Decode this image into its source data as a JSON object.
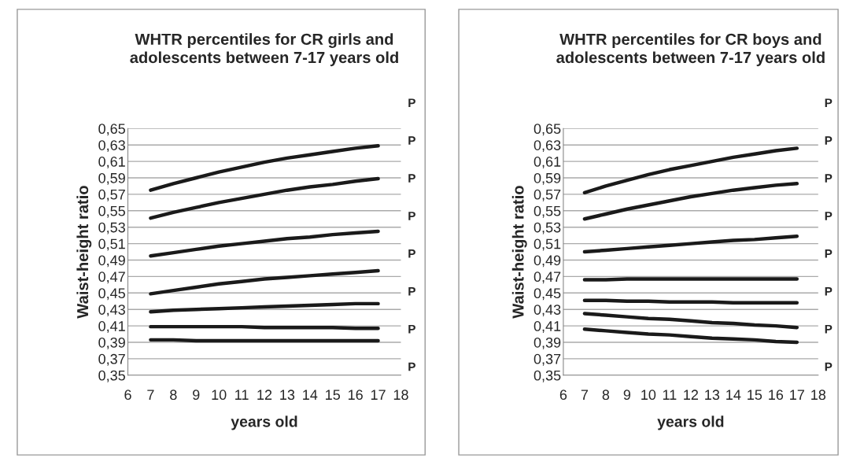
{
  "chart_data": [
    {
      "type": "line",
      "title": "WHTR percentiles for CR girls and\nadolescents between 7-17 years old",
      "xlabel": "years old",
      "ylabel": "Waist-height ratio",
      "x": [
        7,
        8,
        9,
        10,
        11,
        12,
        13,
        14,
        15,
        16,
        17
      ],
      "series": [
        {
          "color": "#1a1a1a",
          "values": [
            0.575,
            0.583,
            0.59,
            0.597,
            0.603,
            0.609,
            0.614,
            0.618,
            0.622,
            0.626,
            0.629
          ]
        },
        {
          "color": "#1a1a1a",
          "values": [
            0.541,
            0.548,
            0.554,
            0.56,
            0.565,
            0.57,
            0.575,
            0.579,
            0.582,
            0.586,
            0.589
          ]
        },
        {
          "color": "#1a1a1a",
          "values": [
            0.495,
            0.499,
            0.503,
            0.507,
            0.51,
            0.513,
            0.516,
            0.518,
            0.521,
            0.523,
            0.525
          ]
        },
        {
          "color": "#1a1a1a",
          "values": [
            0.449,
            0.453,
            0.457,
            0.461,
            0.464,
            0.467,
            0.469,
            0.471,
            0.473,
            0.475,
            0.477
          ]
        },
        {
          "color": "#1a1a1a",
          "values": [
            0.427,
            0.429,
            0.43,
            0.431,
            0.432,
            0.433,
            0.434,
            0.435,
            0.436,
            0.437,
            0.437
          ]
        },
        {
          "color": "#1a1a1a",
          "values": [
            0.409,
            0.409,
            0.409,
            0.409,
            0.409,
            0.408,
            0.408,
            0.408,
            0.408,
            0.407,
            0.407
          ]
        },
        {
          "color": "#1a1a1a",
          "values": [
            0.393,
            0.393,
            0.392,
            0.392,
            0.392,
            0.392,
            0.392,
            0.392,
            0.392,
            0.392,
            0.392
          ]
        }
      ],
      "annotations": [
        "P",
        "P",
        "P",
        "P",
        "P",
        "P",
        "P",
        "P"
      ],
      "xlim": [
        6,
        18
      ],
      "xticks": [
        6,
        7,
        8,
        9,
        10,
        11,
        12,
        13,
        14,
        15,
        16,
        17,
        18
      ],
      "ylim": [
        0.35,
        0.65
      ],
      "yticks": [
        {
          "value": 0.35,
          "label": "0,35"
        },
        {
          "value": 0.37,
          "label": "0,37"
        },
        {
          "value": 0.39,
          "label": "0,39"
        },
        {
          "value": 0.41,
          "label": "0,41"
        },
        {
          "value": 0.43,
          "label": "0,43"
        },
        {
          "value": 0.45,
          "label": "0,45"
        },
        {
          "value": 0.47,
          "label": "0,47"
        },
        {
          "value": 0.49,
          "label": "0,49"
        },
        {
          "value": 0.51,
          "label": "0,51"
        },
        {
          "value": 0.53,
          "label": "0,53"
        },
        {
          "value": 0.55,
          "label": "0,55"
        },
        {
          "value": 0.57,
          "label": "0,57"
        },
        {
          "value": 0.59,
          "label": "0,59"
        },
        {
          "value": 0.61,
          "label": "0,61"
        },
        {
          "value": 0.63,
          "label": "0,63"
        },
        {
          "value": 0.65,
          "label": "0,65"
        }
      ],
      "grid": "y",
      "marker": "none",
      "line_style": "solid"
    },
    {
      "type": "line",
      "title": "WHTR percentiles for CR boys and\nadolescents between 7-17 years old",
      "xlabel": "years old",
      "ylabel": "Waist-height ratio",
      "x": [
        7,
        8,
        9,
        10,
        11,
        12,
        13,
        14,
        15,
        16,
        17
      ],
      "series": [
        {
          "color": "#1a1a1a",
          "values": [
            0.572,
            0.58,
            0.587,
            0.594,
            0.6,
            0.605,
            0.61,
            0.615,
            0.619,
            0.623,
            0.626
          ]
        },
        {
          "color": "#1a1a1a",
          "values": [
            0.54,
            0.546,
            0.552,
            0.557,
            0.562,
            0.567,
            0.571,
            0.575,
            0.578,
            0.581,
            0.583
          ]
        },
        {
          "color": "#1a1a1a",
          "values": [
            0.5,
            0.502,
            0.504,
            0.506,
            0.508,
            0.51,
            0.512,
            0.514,
            0.515,
            0.517,
            0.519
          ]
        },
        {
          "color": "#1a1a1a",
          "values": [
            0.466,
            0.466,
            0.467,
            0.467,
            0.467,
            0.467,
            0.467,
            0.467,
            0.467,
            0.467,
            0.467
          ]
        },
        {
          "color": "#1a1a1a",
          "values": [
            0.441,
            0.441,
            0.44,
            0.44,
            0.439,
            0.439,
            0.439,
            0.438,
            0.438,
            0.438,
            0.438
          ]
        },
        {
          "color": "#1a1a1a",
          "values": [
            0.425,
            0.423,
            0.421,
            0.419,
            0.418,
            0.416,
            0.414,
            0.413,
            0.411,
            0.41,
            0.408
          ]
        },
        {
          "color": "#1a1a1a",
          "values": [
            0.406,
            0.404,
            0.402,
            0.4,
            0.399,
            0.397,
            0.395,
            0.394,
            0.393,
            0.391,
            0.39
          ]
        }
      ],
      "annotations": [
        "P",
        "P",
        "P",
        "P",
        "P",
        "P",
        "P",
        "P"
      ],
      "xlim": [
        6,
        18
      ],
      "xticks": [
        6,
        7,
        8,
        9,
        10,
        11,
        12,
        13,
        14,
        15,
        16,
        17,
        18
      ],
      "ylim": [
        0.35,
        0.65
      ],
      "yticks": [
        {
          "value": 0.35,
          "label": "0,35"
        },
        {
          "value": 0.37,
          "label": "0,37"
        },
        {
          "value": 0.39,
          "label": "0,39"
        },
        {
          "value": 0.41,
          "label": "0,41"
        },
        {
          "value": 0.43,
          "label": "0,43"
        },
        {
          "value": 0.45,
          "label": "0,45"
        },
        {
          "value": 0.47,
          "label": "0,47"
        },
        {
          "value": 0.49,
          "label": "0,49"
        },
        {
          "value": 0.51,
          "label": "0,51"
        },
        {
          "value": 0.53,
          "label": "0,53"
        },
        {
          "value": 0.55,
          "label": "0,55"
        },
        {
          "value": 0.57,
          "label": "0,57"
        },
        {
          "value": 0.59,
          "label": "0,59"
        },
        {
          "value": 0.61,
          "label": "0,61"
        },
        {
          "value": 0.63,
          "label": "0,63"
        },
        {
          "value": 0.65,
          "label": "0,65"
        }
      ],
      "grid": "y",
      "marker": "none",
      "line_style": "solid"
    }
  ]
}
